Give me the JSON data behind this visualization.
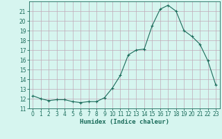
{
  "x": [
    0,
    1,
    2,
    3,
    4,
    5,
    6,
    7,
    8,
    9,
    10,
    11,
    12,
    13,
    14,
    15,
    16,
    17,
    18,
    19,
    20,
    21,
    22,
    23
  ],
  "y": [
    12.3,
    12.0,
    11.8,
    11.9,
    11.9,
    11.7,
    11.6,
    11.7,
    11.7,
    12.1,
    13.1,
    14.4,
    16.5,
    17.0,
    17.1,
    19.5,
    21.2,
    21.6,
    21.0,
    19.0,
    18.4,
    17.6,
    15.9,
    13.4
  ],
  "xlabel": "Humidex (Indice chaleur)",
  "ylim": [
    11,
    22
  ],
  "xlim": [
    -0.5,
    23.5
  ],
  "yticks": [
    11,
    12,
    13,
    14,
    15,
    16,
    17,
    18,
    19,
    20,
    21
  ],
  "xticks": [
    0,
    1,
    2,
    3,
    4,
    5,
    6,
    7,
    8,
    9,
    10,
    11,
    12,
    13,
    14,
    15,
    16,
    17,
    18,
    19,
    20,
    21,
    22,
    23
  ],
  "line_color": "#1a6b5a",
  "marker_color": "#1a6b5a",
  "bg_color": "#d6f5ef",
  "grid_color": "#c0aab8",
  "fig_bg": "#d6f5ef",
  "tick_color": "#1a6b5a",
  "label_color": "#1a6b5a",
  "tick_fontsize": 5.5,
  "xlabel_fontsize": 6.5
}
